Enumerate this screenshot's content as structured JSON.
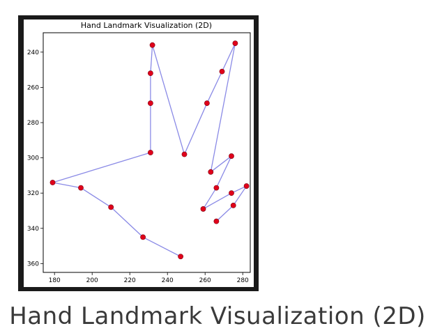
{
  "caption": "Hand Landmark Visualization (2D)",
  "colors": {
    "frame": "#1a1a1a",
    "line": "#8a8ae6",
    "point": "#e0001b",
    "point_edge": "#7a0010"
  },
  "chart_data": {
    "type": "scatter",
    "title": "Hand Landmark Visualization (2D)",
    "xlabel": "",
    "ylabel": "",
    "xlim": [
      174,
      284
    ],
    "ylim": [
      365,
      229
    ],
    "y_inverted": true,
    "grid": false,
    "xticks": [
      180,
      200,
      220,
      240,
      260,
      280
    ],
    "yticks": [
      240,
      260,
      280,
      300,
      320,
      340,
      360
    ],
    "points": [
      {
        "x": 247,
        "y": 356
      },
      {
        "x": 227,
        "y": 345
      },
      {
        "x": 210,
        "y": 328
      },
      {
        "x": 194,
        "y": 317
      },
      {
        "x": 179,
        "y": 314
      },
      {
        "x": 231,
        "y": 297
      },
      {
        "x": 231,
        "y": 269
      },
      {
        "x": 231,
        "y": 252
      },
      {
        "x": 232,
        "y": 236
      },
      {
        "x": 249,
        "y": 298
      },
      {
        "x": 261,
        "y": 269
      },
      {
        "x": 269,
        "y": 251
      },
      {
        "x": 276,
        "y": 235
      },
      {
        "x": 263,
        "y": 308
      },
      {
        "x": 274,
        "y": 299
      },
      {
        "x": 266,
        "y": 317
      },
      {
        "x": 259,
        "y": 329
      },
      {
        "x": 274,
        "y": 320
      },
      {
        "x": 282,
        "y": 316
      },
      {
        "x": 275,
        "y": 327
      },
      {
        "x": 266,
        "y": 336
      }
    ],
    "connections": [
      [
        0,
        1
      ],
      [
        1,
        2
      ],
      [
        2,
        3
      ],
      [
        3,
        4
      ],
      [
        4,
        5
      ],
      [
        5,
        6
      ],
      [
        6,
        7
      ],
      [
        7,
        8
      ],
      [
        8,
        9
      ],
      [
        9,
        10
      ],
      [
        10,
        11
      ],
      [
        11,
        12
      ],
      [
        12,
        13
      ],
      [
        13,
        14
      ],
      [
        14,
        15
      ],
      [
        15,
        16
      ],
      [
        16,
        17
      ],
      [
        17,
        18
      ],
      [
        18,
        19
      ],
      [
        19,
        20
      ]
    ]
  }
}
